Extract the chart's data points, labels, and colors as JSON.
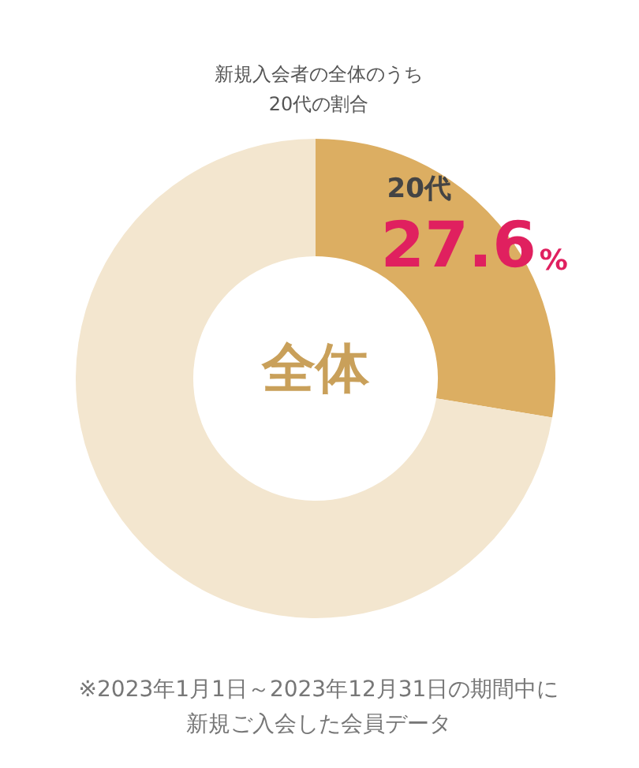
{
  "chart_data": {
    "type": "donut",
    "title": "新規入会者の全体のうち\n20代の割合",
    "categories": [
      "20代",
      null
    ],
    "values": [
      27.6,
      72.4
    ],
    "colors": [
      "#dcae62",
      "#f3e6cf"
    ],
    "value_labels": [
      "27.6%",
      null
    ],
    "legend": false,
    "annotations": [
      "全体",
      "※2023年1月1日～2023年12月31日の期間中に新規ご入会した会員データ"
    ]
  }
}
